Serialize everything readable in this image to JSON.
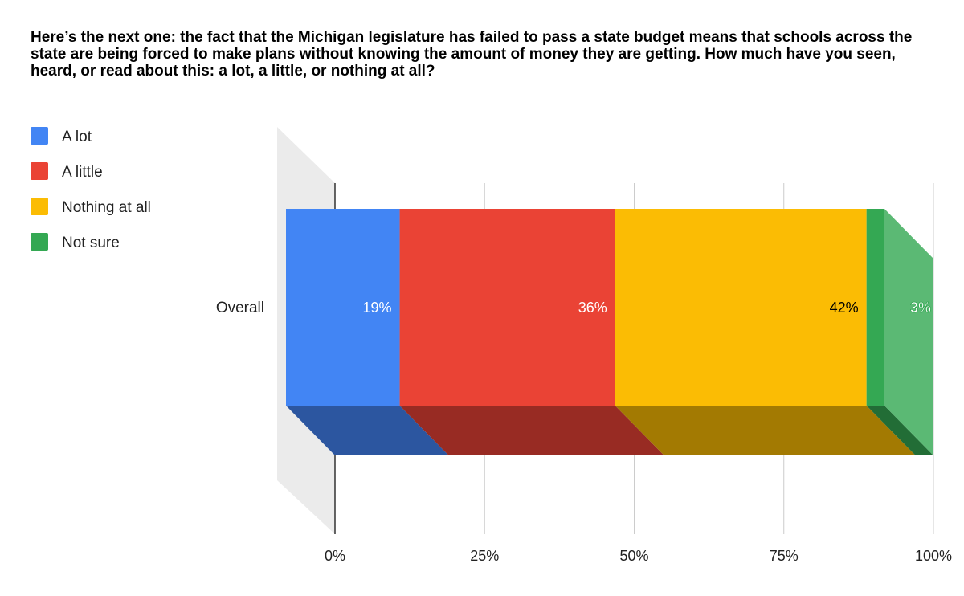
{
  "chart_data": {
    "type": "bar",
    "orientation": "horizontal",
    "stacked": true,
    "style": "3d",
    "title": "Here’s the next one: the fact that the Michigan legislature has failed to pass a state budget means that schools across the state are being forced to make plans without knowing the amount of money they are getting. How much have you seen, heard, or read about this: a lot, a little, or nothing at all?",
    "categories": [
      "Overall"
    ],
    "series": [
      {
        "name": "A lot",
        "values": [
          19
        ],
        "label": "19%",
        "color": "#4285f4",
        "shade": "#2c56a0",
        "label_color": "#ffffff"
      },
      {
        "name": "A little",
        "values": [
          36
        ],
        "label": "36%",
        "color": "#ea4335",
        "shade": "#982b23",
        "label_color": "#ffffff"
      },
      {
        "name": "Nothing at all",
        "values": [
          42
        ],
        "label": "42%",
        "color": "#fbbc04",
        "shade": "#a37a02",
        "label_color": "#000000"
      },
      {
        "name": "Not sure",
        "values": [
          3
        ],
        "label": "3%",
        "color": "#34a853",
        "shade": "#226d36",
        "label_color": "#ffffff"
      }
    ],
    "xlim": [
      0,
      100
    ],
    "xticks": [
      "0%",
      "25%",
      "50%",
      "75%",
      "100%"
    ],
    "grid": true,
    "legend": "top-left"
  }
}
